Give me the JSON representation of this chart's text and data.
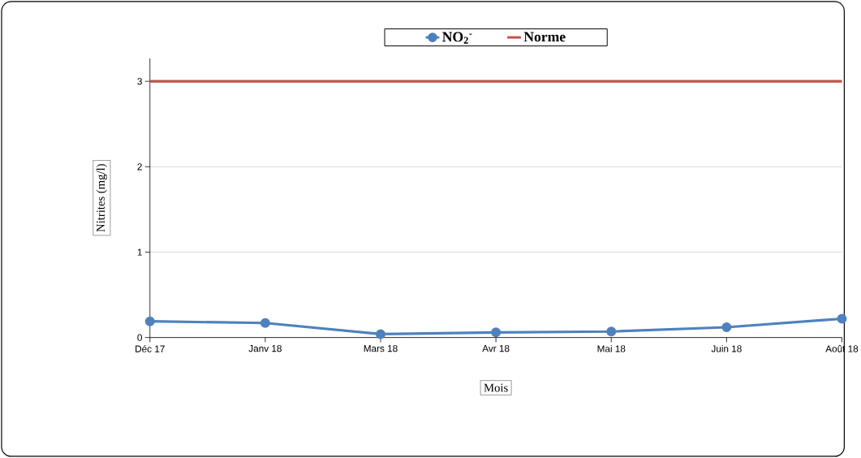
{
  "chart_data": {
    "type": "line",
    "xlabel": "Mois",
    "ylabel": "Nitrites (mg/l)",
    "categories": [
      "Déc 17",
      "Janv 18",
      "Mars 18",
      "Avr 18",
      "Mai 18",
      "Juin 18",
      "Août 18"
    ],
    "series": [
      {
        "name": "NO$_{2}$$^{-}$",
        "color": "#4f81bd",
        "marker": "circle",
        "values": [
          0.19,
          0.17,
          0.04,
          0.06,
          0.07,
          0.12,
          0.22
        ]
      },
      {
        "name": "Norme",
        "color": "#c0504d",
        "marker": "none",
        "values": [
          3,
          3,
          3,
          3,
          3,
          3,
          3
        ]
      }
    ],
    "ylim": [
      0,
      3.27
    ],
    "yticks": [
      0,
      1,
      2,
      3
    ],
    "grid": "y",
    "legend": "top"
  }
}
